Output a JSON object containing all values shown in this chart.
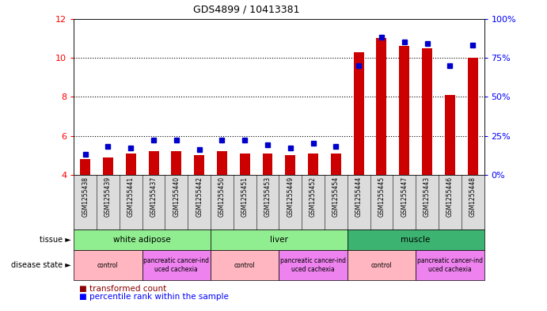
{
  "title": "GDS4899 / 10413381",
  "samples": [
    "GSM1255438",
    "GSM1255439",
    "GSM1255441",
    "GSM1255437",
    "GSM1255440",
    "GSM1255442",
    "GSM1255450",
    "GSM1255451",
    "GSM1255453",
    "GSM1255449",
    "GSM1255452",
    "GSM1255454",
    "GSM1255444",
    "GSM1255445",
    "GSM1255447",
    "GSM1255443",
    "GSM1255446",
    "GSM1255448"
  ],
  "red_bars": [
    4.8,
    4.9,
    5.1,
    5.2,
    5.2,
    5.0,
    5.2,
    5.1,
    5.1,
    5.0,
    5.1,
    5.1,
    10.3,
    11.0,
    10.6,
    10.5,
    8.1,
    10.0
  ],
  "blue_dots": [
    13,
    18,
    17,
    22,
    22,
    16,
    22,
    22,
    19,
    17,
    20,
    18,
    70,
    88,
    85,
    84,
    70,
    83
  ],
  "ylim_left": [
    4,
    12
  ],
  "ylim_right": [
    0,
    100
  ],
  "yticks_left": [
    4,
    6,
    8,
    10,
    12
  ],
  "yticks_right": [
    0,
    25,
    50,
    75,
    100
  ],
  "ytick_labels_right": [
    "0%",
    "25%",
    "50%",
    "75%",
    "100%"
  ],
  "bar_color": "#cc0000",
  "dot_color": "#0000cc",
  "tissue_groups": [
    {
      "label": "white adipose",
      "start": 0,
      "end": 6,
      "color": "#90EE90"
    },
    {
      "label": "liver",
      "start": 6,
      "end": 12,
      "color": "#90EE90"
    },
    {
      "label": "muscle",
      "start": 12,
      "end": 18,
      "color": "#3CB371"
    }
  ],
  "disease_groups": [
    {
      "label": "control",
      "start": 0,
      "end": 3,
      "color": "#FFB6C1"
    },
    {
      "label": "pancreatic cancer-ind\nuced cachexia",
      "start": 3,
      "end": 6,
      "color": "#EE82EE"
    },
    {
      "label": "control",
      "start": 6,
      "end": 9,
      "color": "#FFB6C1"
    },
    {
      "label": "pancreatic cancer-ind\nuced cachexia",
      "start": 9,
      "end": 12,
      "color": "#EE82EE"
    },
    {
      "label": "control",
      "start": 12,
      "end": 15,
      "color": "#FFB6C1"
    },
    {
      "label": "pancreatic cancer-ind\nuced cachexia",
      "start": 15,
      "end": 18,
      "color": "#EE82EE"
    }
  ],
  "tissue_label": "tissue",
  "disease_label": "disease state",
  "legend_red": "transformed count",
  "legend_blue": "percentile rank within the sample",
  "sample_bg_color": "#DCDCDC",
  "muscle_color": "#3CB371",
  "adipose_liver_color": "#90EE90",
  "control_color": "#FFB6C1",
  "cachexia_color": "#EE82EE"
}
